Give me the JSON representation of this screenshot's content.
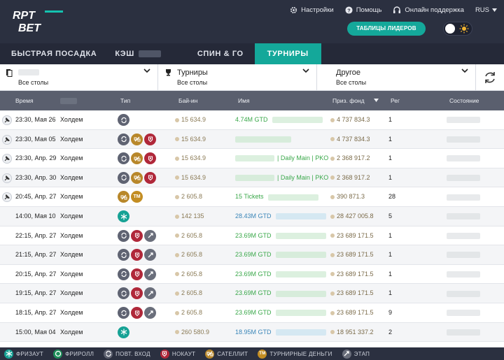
{
  "brand": {
    "logo_text_top": "RPT",
    "logo_text_bottom": "BET"
  },
  "header": {
    "links": [
      {
        "label": "Настройки",
        "icon": "gear-icon"
      },
      {
        "label": "Помощь",
        "icon": "help-icon"
      },
      {
        "label": "Онлайн поддержка",
        "icon": "headset-icon"
      }
    ],
    "language": "RUS",
    "leaders_button": "ТАБЛИЦЫ ЛИДЕРОВ"
  },
  "tabs": [
    {
      "label": "БЫСТРАЯ ПОСАДКА",
      "active": false
    },
    {
      "label": "КЭШ",
      "active": false
    },
    {
      "label": "СПИН & ГО",
      "active": false
    },
    {
      "label": "ТУРНИРЫ",
      "active": true
    }
  ],
  "filters": [
    {
      "title": "",
      "sub": "Все столы"
    },
    {
      "title": "Турниры",
      "sub": "Все столы"
    },
    {
      "title": "Другое",
      "sub": "Все столы"
    }
  ],
  "columns": {
    "time": "Время",
    "type": "Тип",
    "buyin": "Бай-ин",
    "name": "Имя",
    "pool": "Приз. фонд",
    "reg": "Рег",
    "state": "Состояние"
  },
  "rows": [
    {
      "time": "23:30, Мая 26",
      "game": "Холдем",
      "types": [
        "rebuy"
      ],
      "buyin": "15 634.9",
      "gtd": "4.74M GTD",
      "gtd_color": "green",
      "suffix": "",
      "pool": "4 737 834.3",
      "reg": "1",
      "pinned": true
    },
    {
      "time": "23:30, Мая 05",
      "game": "Холдем",
      "types": [
        "rebuy",
        "sat",
        "knock"
      ],
      "buyin": "15 634.9",
      "gtd": "",
      "gtd_color": "green",
      "suffix": "",
      "pool": "4 737 834.3",
      "reg": "1",
      "pinned": true
    },
    {
      "time": "23:30, Апр. 29",
      "game": "Холдем",
      "types": [
        "rebuy",
        "sat",
        "knock"
      ],
      "buyin": "15 634.9",
      "gtd": "",
      "gtd_color": "green",
      "suffix": "| Daily Main | PKO",
      "pool": "2 368 917.2",
      "reg": "1",
      "pinned": true
    },
    {
      "time": "23:30, Апр. 30",
      "game": "Холдем",
      "types": [
        "rebuy",
        "sat",
        "knock"
      ],
      "buyin": "15 634.9",
      "gtd": "",
      "gtd_color": "green",
      "suffix": "| Daily Main | PKO",
      "pool": "2 368 917.2",
      "reg": "1",
      "pinned": true
    },
    {
      "time": "20:45, Апр. 27",
      "game": "Холдем",
      "types": [
        "sat",
        "tm"
      ],
      "buyin": "2 605.8",
      "gtd": "15 Tickets",
      "gtd_color": "green",
      "suffix": "",
      "pool": "390 871.3",
      "reg": "28",
      "pinned": true
    },
    {
      "time": "14:00, Мая 10",
      "game": "Холдем",
      "types": [
        "freeze"
      ],
      "buyin": "142 135",
      "gtd": "28.43M GTD",
      "gtd_color": "blue",
      "suffix": "",
      "pool": "28 427 005.8",
      "reg": "5",
      "pinned": false
    },
    {
      "time": "22:15, Апр. 27",
      "game": "Холдем",
      "types": [
        "rebuy",
        "knock",
        "stage"
      ],
      "buyin": "2 605.8",
      "gtd": "23.69M GTD",
      "gtd_color": "green",
      "suffix": "",
      "pool": "23 689 171.5",
      "reg": "1",
      "pinned": false
    },
    {
      "time": "21:15, Апр. 27",
      "game": "Холдем",
      "types": [
        "rebuy",
        "knock",
        "stage"
      ],
      "buyin": "2 605.8",
      "gtd": "23.69M GTD",
      "gtd_color": "green",
      "suffix": "",
      "pool": "23 689 171.5",
      "reg": "1",
      "pinned": false
    },
    {
      "time": "20:15, Апр. 27",
      "game": "Холдем",
      "types": [
        "rebuy",
        "knock",
        "stage"
      ],
      "buyin": "2 605.8",
      "gtd": "23.69M GTD",
      "gtd_color": "green",
      "suffix": "",
      "pool": "23 689 171.5",
      "reg": "1",
      "pinned": false
    },
    {
      "time": "19:15, Апр. 27",
      "game": "Холдем",
      "types": [
        "rebuy",
        "knock",
        "stage"
      ],
      "buyin": "2 605.8",
      "gtd": "23.69M GTD",
      "gtd_color": "green",
      "suffix": "",
      "pool": "23 689 171.5",
      "reg": "1",
      "pinned": false
    },
    {
      "time": "18:15, Апр. 27",
      "game": "Холдем",
      "types": [
        "rebuy",
        "knock",
        "stage"
      ],
      "buyin": "2 605.8",
      "gtd": "23.69M GTD",
      "gtd_color": "green",
      "suffix": "",
      "pool": "23 689 171.5",
      "reg": "9",
      "pinned": false
    },
    {
      "time": "15:00, Мая 04",
      "game": "Холдем",
      "types": [
        "freeze"
      ],
      "buyin": "260 580.9",
      "gtd": "18.95M GTD",
      "gtd_color": "blue",
      "suffix": "",
      "pool": "18 951 337.2",
      "reg": "2",
      "pinned": false
    }
  ],
  "legend": [
    {
      "type": "freeze",
      "label": "ФРИЗАУТ"
    },
    {
      "type": "freeroll",
      "label": "ФРИРОЛЛ"
    },
    {
      "type": "rebuy",
      "label": "ПОВТ. ВХОД"
    },
    {
      "type": "knock",
      "label": "НОКАУТ"
    },
    {
      "type": "sat",
      "label": "САТЕЛЛИТ"
    },
    {
      "type": "tm",
      "label": "ТУРНИРНЫЕ ДЕНЬГИ",
      "glyph": "TM"
    },
    {
      "type": "stage",
      "label": "ЭТАП"
    }
  ],
  "colors": {
    "accent": "#14a89a",
    "header_bg": "#2b3040",
    "gtd_green": "#3aa84a",
    "gtd_blue": "#3a86b8"
  }
}
